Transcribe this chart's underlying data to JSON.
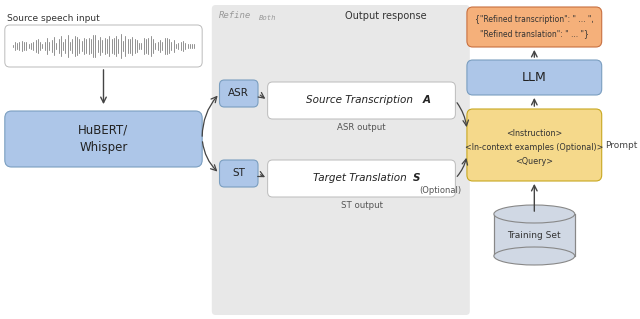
{
  "fig_width": 6.4,
  "fig_height": 3.19,
  "dpi": 100,
  "bg_color": "#ffffff",
  "gray_bg_color": "#e8e8e8",
  "blue_color": "#adc6e8",
  "yellow_color": "#f5d98b",
  "orange_color": "#f5b07a",
  "white_color": "#ffffff",
  "cyl_color": "#d0d8e4",
  "line_color": "#444444",
  "text_color": "#333333",
  "gray_text": "#888888",
  "refine_label": "Refine",
  "refine_sub": "Both",
  "output_label": "Output response",
  "source_speech_label": "Source speech input",
  "asr_output_label": "ASR output",
  "st_output_label": "ST output",
  "prompt_label": "Prompt",
  "optional_label": "(Optional)",
  "hubert_text": "HuBERT/\nWhisper",
  "asr_text": "ASR",
  "st_text": "ST",
  "src_trans_text": "Source Transcription A",
  "tgt_trans_text": "Target Translation S",
  "llm_text": "LLM",
  "prompt_line1": "<Instruction>",
  "prompt_line2": "<In-context examples (Optional)>",
  "prompt_line3": "<Query>",
  "output_line1": "{\"Refined transcription\": \" ... \",",
  "output_line2": "\"Refined translation\": \" ... \"}",
  "training_set_text": "Training Set",
  "xlim": [
    0,
    6.4
  ],
  "ylim": [
    0,
    3.19
  ]
}
